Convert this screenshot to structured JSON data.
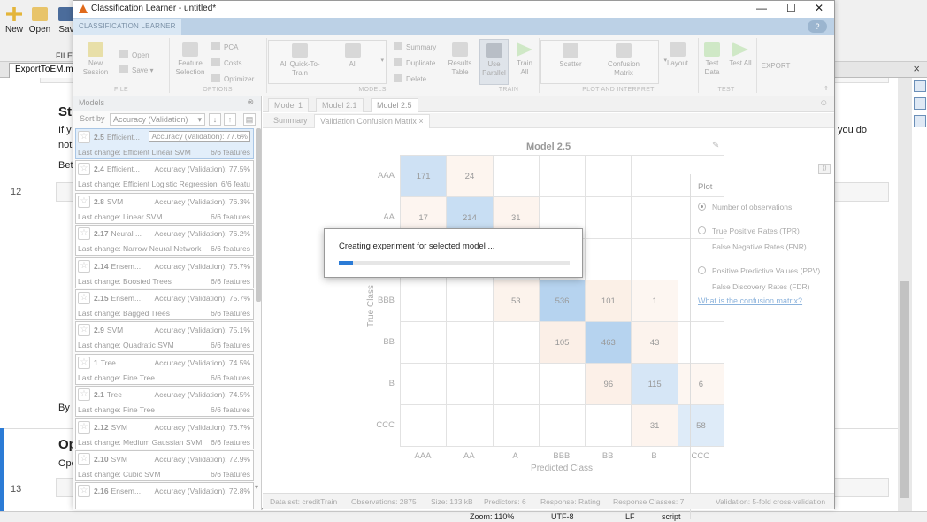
{
  "bg_toolbar": {
    "buttons": [
      {
        "id": "new",
        "label": "New",
        "color": "#e4b53a"
      },
      {
        "id": "open",
        "label": "Open",
        "color": "#e8c46a"
      },
      {
        "id": "save",
        "label": "Sav",
        "color": "#4b6c9b"
      }
    ],
    "file_label": "FILE",
    "tab": "ExportToEM.mlx",
    "tab_close": "×"
  },
  "bg_doc": {
    "lines": [
      {
        "num": "12"
      },
      {
        "num": "13"
      }
    ],
    "text": {
      "st": "St",
      "if": "If y",
      "not": "not",
      "bet": "Bet",
      "by": "By",
      "op": "Op",
      "ope": "Ope",
      "you_do": "you do"
    }
  },
  "bg_status": {
    "zoom": "Zoom: 110%",
    "encoding": "UTF-8",
    "eol": "LF",
    "type": "script"
  },
  "window": {
    "title": "Classification Learner - untitled*",
    "minimize": "—",
    "maximize": "☐",
    "close": "✕"
  },
  "ribbon_tab": "CLASSIFICATION LEARNER",
  "help": "?",
  "ribbon": {
    "new_session": "New Session",
    "open": "Open",
    "save": "Save",
    "feature_selection": "Feature Selection",
    "pca": "PCA",
    "costs": "Costs",
    "optimizer": "Optimizer",
    "all_quick": "All Quick-To-Train",
    "all": "All",
    "summary": "Summary",
    "duplicate": "Duplicate",
    "delete": "Delete",
    "results_table": "Results Table",
    "use_parallel": "Use Parallel",
    "train_all": "Train All",
    "scatter": "Scatter",
    "confusion_matrix": "Confusion Matrix",
    "layout": "Layout",
    "test_data": "Test Data",
    "test_all": "Test All",
    "export": "EXPORT",
    "sections": {
      "file": "FILE",
      "options": "OPTIONS",
      "models": "MODELS",
      "train": "TRAIN",
      "plot": "PLOT AND INTERPRET",
      "test": "TEST"
    }
  },
  "models_panel": {
    "title": "Models",
    "close": "⊗",
    "sort_label": "Sort by",
    "sort_value": "Accuracy (Validation)",
    "items": [
      {
        "id": "2.5",
        "name": "Efficient...",
        "acc": "Accuracy (Validation): 77.6%",
        "change": "Last change: Efficient Linear SVM",
        "features": "6/6 features",
        "selected": true
      },
      {
        "id": "2.4",
        "name": "Efficient...",
        "acc": "Accuracy (Validation): 77.5%",
        "change": "Last change: Efficient Logistic Regression",
        "features": "6/6 featu"
      },
      {
        "id": "2.8",
        "name": "SVM",
        "acc": "Accuracy (Validation): 76.3%",
        "change": "Last change: Linear SVM",
        "features": "6/6 features"
      },
      {
        "id": "2.17",
        "name": "Neural ...",
        "acc": "Accuracy (Validation): 76.2%",
        "change": "Last change: Narrow Neural Network",
        "features": "6/6 features"
      },
      {
        "id": "2.14",
        "name": "Ensem...",
        "acc": "Accuracy (Validation): 75.7%",
        "change": "Last change: Boosted Trees",
        "features": "6/6 features"
      },
      {
        "id": "2.15",
        "name": "Ensem...",
        "acc": "Accuracy (Validation): 75.7%",
        "change": "Last change: Bagged Trees",
        "features": "6/6 features"
      },
      {
        "id": "2.9",
        "name": "SVM",
        "acc": "Accuracy (Validation): 75.1%",
        "change": "Last change: Quadratic SVM",
        "features": "6/6 features"
      },
      {
        "id": "1",
        "name": "Tree",
        "acc": "Accuracy (Validation): 74.5%",
        "change": "Last change: Fine Tree",
        "features": "6/6 features"
      },
      {
        "id": "2.1",
        "name": "Tree",
        "acc": "Accuracy (Validation): 74.5%",
        "change": "Last change: Fine Tree",
        "features": "6/6 features"
      },
      {
        "id": "2.12",
        "name": "SVM",
        "acc": "Accuracy (Validation): 73.7%",
        "change": "Last change: Medium Gaussian SVM",
        "features": "6/6 features"
      },
      {
        "id": "2.10",
        "name": "SVM",
        "acc": "Accuracy (Validation): 72.9%",
        "change": "Last change: Cubic SVM",
        "features": "6/6 features"
      },
      {
        "id": "2.16",
        "name": "Ensem...",
        "acc": "Accuracy (Validation): 72.8%",
        "change": "",
        "features": ""
      }
    ]
  },
  "doc_tabs": [
    "Model 1",
    "Model 2.1",
    "Model 2.5"
  ],
  "sub_tabs": [
    "Summary",
    "Validation Confusion Matrix ×"
  ],
  "chart_data": {
    "type": "heatmap",
    "title": "Model 2.5",
    "xlabel": "Predicted Class",
    "ylabel": "True Class",
    "classes": [
      "AAA",
      "AA",
      "A",
      "BBB",
      "BB",
      "B",
      "CCC"
    ],
    "matrix": [
      [
        171,
        24,
        null,
        null,
        null,
        null,
        null
      ],
      [
        17,
        214,
        31,
        null,
        null,
        null,
        null
      ],
      [
        null,
        null,
        null,
        null,
        null,
        null,
        null
      ],
      [
        null,
        null,
        53,
        536,
        101,
        1,
        null
      ],
      [
        null,
        null,
        null,
        105,
        463,
        43,
        null
      ],
      [
        null,
        null,
        null,
        null,
        96,
        115,
        6
      ],
      [
        null,
        null,
        null,
        null,
        null,
        31,
        58
      ]
    ],
    "diag_color": "#b6d3ef",
    "off_color": "#f7dcc9"
  },
  "plot_options": {
    "title": "Plot",
    "options": [
      {
        "lines": [
          "Number of observations"
        ],
        "selected": true
      },
      {
        "lines": [
          "True Positive Rates (TPR)",
          "False Negative Rates (FNR)"
        ]
      },
      {
        "lines": [
          "Positive Predictive Values (PPV)",
          "False Discovery Rates (FDR)"
        ]
      }
    ],
    "link": "What is the confusion matrix?"
  },
  "status": {
    "dataset": "Data set: creditTrain",
    "observations": "Observations: 2875",
    "size": "Size: 133 kB",
    "predictors": "Predictors: 6",
    "response": "Response: Rating",
    "classes": "Response Classes: 7",
    "validation": "Validation: 5-fold cross-validation"
  },
  "dialog": {
    "message": "Creating experiment for selected model ...",
    "progress": 0.06
  }
}
